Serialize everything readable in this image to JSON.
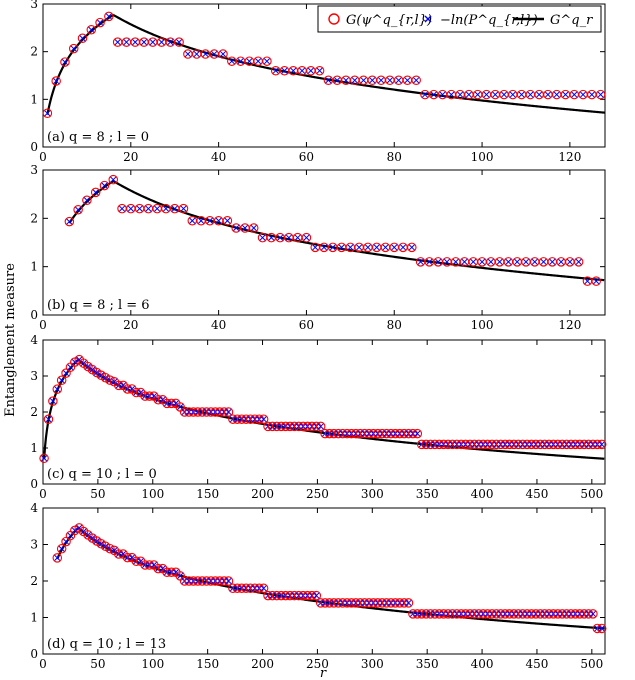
{
  "figure": {
    "ylabel": "Entanglement measure",
    "xlabel": "r"
  },
  "legend": {
    "position": "top-right of first panel",
    "entries": [
      {
        "label": "G(ψ^q_{r,l})",
        "marker": "open-circle",
        "color": "#ff0000"
      },
      {
        "label": "−ln(P^q_{r,l})",
        "marker": "x-cross",
        "color": "#0000ff"
      },
      {
        "label": "G^q_r",
        "marker": "line",
        "color": "#000000"
      }
    ]
  },
  "chart_data": [
    {
      "type": "scatter",
      "panel_label": "(a) q = 8 ; l = 0",
      "q": 8,
      "l": 0,
      "xlim": [
        0,
        128
      ],
      "ylim": [
        0,
        3
      ],
      "xticks": [
        0,
        20,
        40,
        60,
        80,
        100,
        120
      ],
      "yticks": [
        0,
        1,
        2,
        3
      ],
      "marker_step": 2,
      "series_points_start": 1,
      "points_end": 128,
      "curve": {
        "type": "entanglement",
        "q": 8
      },
      "marker_levels": [
        {
          "x_from": 1,
          "x_to": 16,
          "y": "follows curve"
        },
        {
          "x_from": 17,
          "x_to": 32,
          "y": 2.2
        },
        {
          "x_from": 33,
          "x_to": 42,
          "y": 1.95
        },
        {
          "x_from": 43,
          "x_to": 51,
          "y": 1.8
        },
        {
          "x_from": 52,
          "x_to": 64,
          "y": 1.6
        },
        {
          "x_from": 65,
          "x_to": 85,
          "y": 1.4
        },
        {
          "x_from": 86,
          "x_to": 128,
          "y": 1.1
        }
      ]
    },
    {
      "type": "scatter",
      "panel_label": "(b) q = 8 ; l = 6",
      "q": 8,
      "l": 6,
      "xlim": [
        0,
        128
      ],
      "ylim": [
        0,
        3
      ],
      "xticks": [
        0,
        20,
        40,
        60,
        80,
        100,
        120
      ],
      "yticks": [
        0,
        1,
        2,
        3
      ],
      "marker_step": 2,
      "series_points_start": 6,
      "points_end": 127,
      "curve": {
        "type": "entanglement",
        "q": 8
      },
      "marker_levels": [
        {
          "x_from": 6,
          "x_to": 16,
          "y": "follows curve"
        },
        {
          "x_from": 17,
          "x_to": 32,
          "y": 2.2
        },
        {
          "x_from": 33,
          "x_to": 42,
          "y": 1.95
        },
        {
          "x_from": 43,
          "x_to": 49,
          "y": 1.8
        },
        {
          "x_from": 50,
          "x_to": 61,
          "y": 1.6
        },
        {
          "x_from": 62,
          "x_to": 84,
          "y": 1.4
        },
        {
          "x_from": 85,
          "x_to": 123,
          "y": 1.1
        },
        {
          "x_from": 124,
          "x_to": 127,
          "y": 0.7
        }
      ]
    },
    {
      "type": "scatter",
      "panel_label": "(c) q = 10 ; l = 0",
      "q": 10,
      "l": 0,
      "xlim": [
        0,
        512
      ],
      "ylim": [
        0,
        4
      ],
      "xticks": [
        0,
        50,
        100,
        150,
        200,
        250,
        300,
        350,
        400,
        450,
        500
      ],
      "yticks": [
        0,
        1,
        2,
        3,
        4
      ],
      "marker_step": 4,
      "series_points_start": 1,
      "points_end": 512,
      "curve": {
        "type": "entanglement",
        "q": 10
      },
      "marker_levels": [
        {
          "x_from": 1,
          "x_to": 32,
          "y": "follows curve"
        },
        {
          "x_from": 33,
          "x_to": 64,
          "y": "follows curve"
        },
        {
          "x_from": 65,
          "x_to": 128,
          "y": "steps"
        },
        {
          "x_from": 129,
          "x_to": 170,
          "y": 2.0
        },
        {
          "x_from": 171,
          "x_to": 204,
          "y": 1.8
        },
        {
          "x_from": 205,
          "x_to": 256,
          "y": 1.6
        },
        {
          "x_from": 257,
          "x_to": 341,
          "y": 1.4
        },
        {
          "x_from": 342,
          "x_to": 512,
          "y": 1.1
        }
      ]
    },
    {
      "type": "scatter",
      "panel_label": "(d) q = 10 ; l = 13",
      "q": 10,
      "l": 13,
      "xlim": [
        0,
        512
      ],
      "ylim": [
        0,
        4
      ],
      "xticks": [
        0,
        50,
        100,
        150,
        200,
        250,
        300,
        350,
        400,
        450,
        500
      ],
      "yticks": [
        0,
        1,
        2,
        3,
        4
      ],
      "marker_step": 4,
      "series_points_start": 13,
      "points_end": 509,
      "curve": {
        "type": "entanglement",
        "q": 10
      },
      "marker_levels": [
        {
          "x_from": 13,
          "x_to": 32,
          "y": "follows curve"
        },
        {
          "x_from": 33,
          "x_to": 64,
          "y": "follows curve"
        },
        {
          "x_from": 65,
          "x_to": 128,
          "y": "steps"
        },
        {
          "x_from": 129,
          "x_to": 170,
          "y": 2.0
        },
        {
          "x_from": 171,
          "x_to": 204,
          "y": 1.8
        },
        {
          "x_from": 205,
          "x_to": 252,
          "y": 1.6
        },
        {
          "x_from": 253,
          "x_to": 336,
          "y": 1.4
        },
        {
          "x_from": 337,
          "x_to": 503,
          "y": 1.1
        },
        {
          "x_from": 504,
          "x_to": 509,
          "y": 0.7
        }
      ]
    }
  ]
}
